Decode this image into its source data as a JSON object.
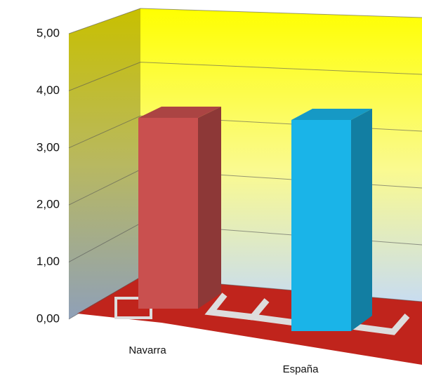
{
  "chart_data": {
    "type": "bar3d",
    "categories": [
      "Navarra",
      "España"
    ],
    "series": [
      {
        "values": [
          3.4,
          3.5
        ],
        "colors": [
          "#c9504f",
          "#1ab4e8"
        ]
      }
    ],
    "ylim": [
      0,
      5
    ],
    "yticks": [
      {
        "value": 0,
        "label": "0,00"
      },
      {
        "value": 1,
        "label": "1,00"
      },
      {
        "value": 2,
        "label": "2,00"
      },
      {
        "value": 3,
        "label": "3,00"
      },
      {
        "value": 4,
        "label": "4,00"
      },
      {
        "value": 5,
        "label": "5,00"
      }
    ],
    "grid": true
  }
}
